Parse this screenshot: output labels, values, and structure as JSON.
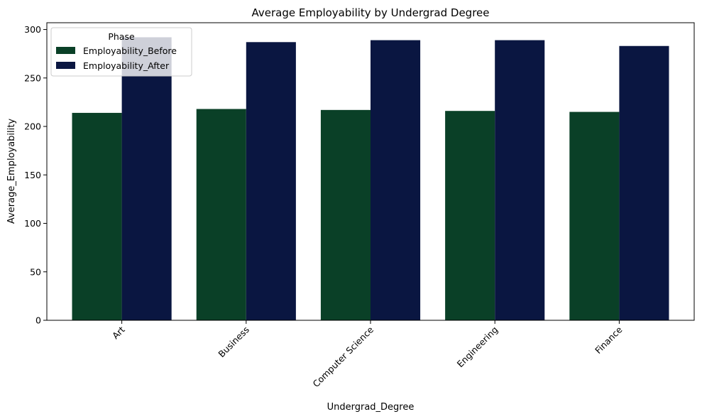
{
  "chart_data": {
    "type": "bar",
    "title": "Average Employability by Undergrad Degree",
    "xlabel": "Undergrad_Degree",
    "ylabel": "Average_Employability",
    "categories": [
      "Art",
      "Business",
      "Computer Science",
      "Engineering",
      "Finance"
    ],
    "series": [
      {
        "name": "Employability_Before",
        "values": [
          214,
          218,
          217,
          216,
          215
        ],
        "color": "#0a4027"
      },
      {
        "name": "Employability_After",
        "values": [
          292,
          287,
          289,
          289,
          283
        ],
        "color": "#0a1641"
      }
    ],
    "ylim": [
      0,
      307
    ],
    "yticks": [
      0,
      50,
      100,
      150,
      200,
      250,
      300
    ],
    "grid": false,
    "legend": {
      "title": "Phase",
      "placement": "top-left"
    }
  }
}
